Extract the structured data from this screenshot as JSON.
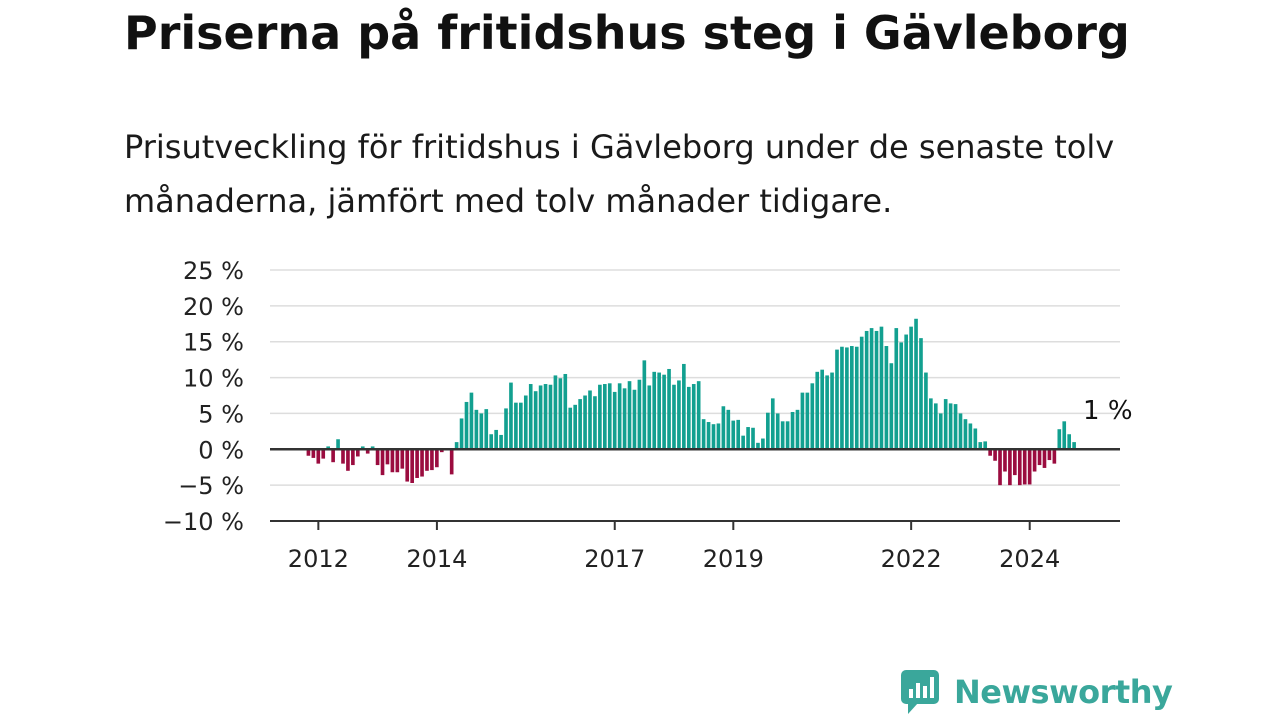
{
  "header": {
    "title": "Priserna på fritidshus steg i Gävleborg",
    "subtitle": "Prisutveckling för fritidshus i Gävleborg under de senaste tolv månaderna, jämfört med tolv månader tidigare."
  },
  "logo": {
    "text": "Newsworthy",
    "color": "#3aa79b"
  },
  "chart_data": {
    "type": "bar",
    "title": "",
    "xlabel": "",
    "ylabel": "",
    "ylim": [
      -10,
      25
    ],
    "yticks": [
      -10,
      -5,
      0,
      5,
      10,
      15,
      20,
      25
    ],
    "ytick_labels": [
      "−10 %",
      "−5 %",
      "0 %",
      "5 %",
      "10 %",
      "15 %",
      "20 %",
      "25 %"
    ],
    "x_start": "2011-11",
    "x_ticks": [
      {
        "date": "2012-01",
        "label": "2012"
      },
      {
        "date": "2014-01",
        "label": "2014"
      },
      {
        "date": "2017-01",
        "label": "2017"
      },
      {
        "date": "2019-01",
        "label": "2019"
      },
      {
        "date": "2022-01",
        "label": "2022"
      },
      {
        "date": "2024-01",
        "label": "2024"
      }
    ],
    "grid": true,
    "colors": {
      "positive": "#12a090",
      "negative": "#9b0c3f",
      "zero_line": "#333333",
      "grid": "#dddddd"
    },
    "annotation": {
      "text": "1 %",
      "date": "2025-04",
      "value": 1
    },
    "series": [
      {
        "values": [
          -0.9,
          -1.2,
          -2.0,
          -1.3,
          0.4,
          -1.8,
          1.4,
          -2.0,
          -3.0,
          -2.2,
          -1.0,
          0.4,
          -0.6,
          0.4,
          -2.2,
          -3.6,
          -2.1,
          -3.2,
          -3.2,
          -2.7,
          -4.5,
          -4.7,
          -4.0,
          -3.8,
          -3.0,
          -2.9,
          -2.5,
          -0.4,
          0.0,
          -3.5,
          1.0,
          4.3,
          6.6,
          7.9,
          5.5,
          5.0,
          5.6,
          2.1,
          2.7,
          2.0,
          5.7,
          9.3,
          6.5,
          6.5,
          7.5,
          9.1,
          8.1,
          8.9,
          9.1,
          9.0,
          10.3,
          9.9,
          10.5,
          5.8,
          6.2,
          7.0,
          7.5,
          8.2,
          7.4,
          9.0,
          9.1,
          9.2,
          8.0,
          9.2,
          8.5,
          9.5,
          8.3,
          9.7,
          12.4,
          8.9,
          10.8,
          10.7,
          10.4,
          11.2,
          9.0,
          9.6,
          11.9,
          8.7,
          9.1,
          9.5,
          4.2,
          3.8,
          3.5,
          3.6,
          6.0,
          5.5,
          4.0,
          4.1,
          1.9,
          3.1,
          3.0,
          0.9,
          1.5,
          5.1,
          7.1,
          5.0,
          3.9,
          3.9,
          5.2,
          5.5,
          7.9,
          7.9,
          9.2,
          10.8,
          11.1,
          10.3,
          10.7,
          13.9,
          14.3,
          14.2,
          14.4,
          14.3,
          15.7,
          16.5,
          16.9,
          16.5,
          17.1,
          14.4,
          12.0,
          16.9,
          14.9,
          16.0,
          17.1,
          18.2,
          15.5,
          10.7,
          7.1,
          6.4,
          5.0,
          7.0,
          6.4,
          6.3,
          5.0,
          4.2,
          3.6,
          2.9,
          1.0,
          1.1,
          -0.9,
          -1.6,
          -5.0,
          -3.1,
          -5.0,
          -3.6,
          -5.0,
          -4.9,
          -4.9,
          -3.1,
          -2.2,
          -2.6,
          -1.5,
          -2.0,
          2.8,
          3.9,
          2.1,
          1.0
        ]
      }
    ]
  }
}
